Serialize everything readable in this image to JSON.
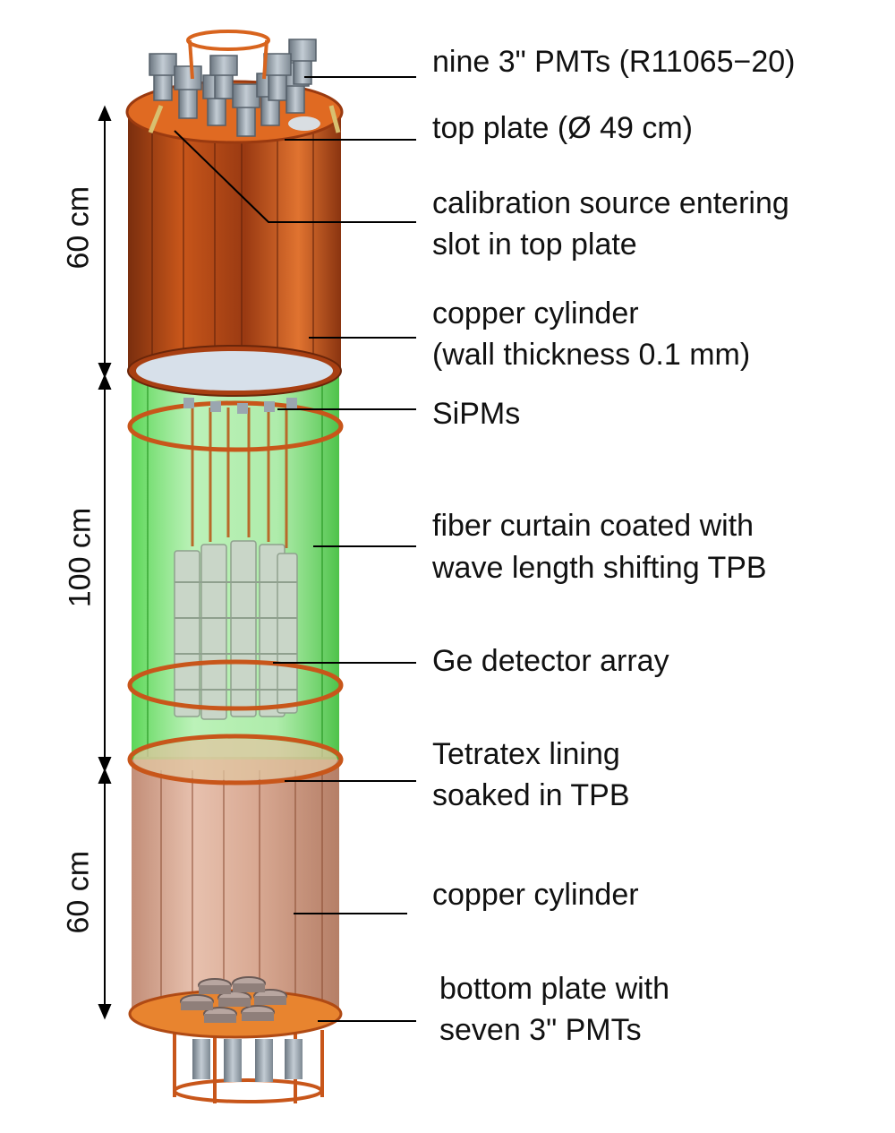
{
  "colors": {
    "copper": "#c8561a",
    "copper_dark": "#7a2e0e",
    "copper_light": "#f08a40",
    "green_curtain": "#4fd44a",
    "ge_crystal": "#c9d6c8",
    "pmt": "#8e99a3",
    "line": "#000000"
  },
  "dimensions": {
    "top": "60 cm",
    "middle": "100 cm",
    "bottom": "60 cm"
  },
  "labels": {
    "pmts_top": "nine 3\" PMTs (R11065−20)",
    "top_plate": "top plate (Ø 49 cm)",
    "calibration": [
      "calibration source entering",
      "slot in top plate"
    ],
    "copper_top": [
      "copper cylinder",
      "(wall thickness 0.1 mm)"
    ],
    "sipms": "SiPMs",
    "fiber": [
      "fiber curtain coated with",
      "wave length shifting TPB"
    ],
    "ge_array": "Ge detector array",
    "tetratex": [
      "Tetratex lining",
      "soaked in TPB"
    ],
    "copper_bottom": "copper cylinder",
    "bottom_plate": [
      "bottom plate with",
      "seven 3\" PMTs"
    ]
  }
}
